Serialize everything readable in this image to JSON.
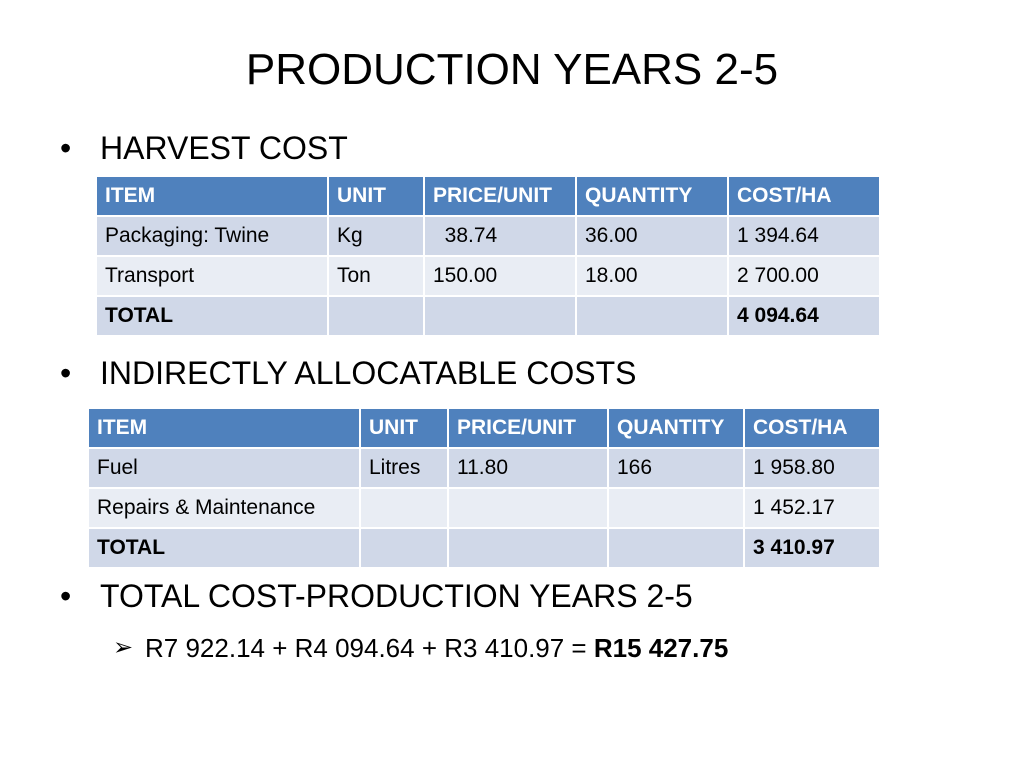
{
  "title": "PRODUCTION YEARS 2-5",
  "bullets": {
    "harvest": "HARVEST COST",
    "indirect": "INDIRECTLY ALLOCATABLE COSTS",
    "total": "TOTAL COST-PRODUCTION YEARS 2-5"
  },
  "harvest_table": {
    "headers": [
      "ITEM",
      "UNIT",
      "PRICE/UNIT",
      "QUANTITY",
      "COST/HA"
    ],
    "rows": [
      [
        "Packaging: Twine",
        "Kg",
        "  38.74",
        "36.00",
        "1 394.64"
      ],
      [
        "Transport",
        "Ton",
        "150.00",
        "18.00",
        "2 700.00"
      ],
      [
        "TOTAL",
        "",
        "",
        "",
        "4 094.64"
      ]
    ]
  },
  "indirect_table": {
    "headers": [
      "ITEM",
      "UNIT",
      "PRICE/UNIT",
      "QUANTITY",
      "COST/HA"
    ],
    "rows": [
      [
        "Fuel",
        "Litres",
        "11.80",
        "166",
        "1 958.80"
      ],
      [
        "Repairs & Maintenance",
        "",
        "",
        "",
        "1 452.17"
      ],
      [
        "TOTAL",
        "",
        "",
        "",
        "3 410.97"
      ]
    ]
  },
  "summary": {
    "equation": "R7 922.14 + R4 094.64 + R3 410.97 = ",
    "result": "R15 427.75"
  }
}
